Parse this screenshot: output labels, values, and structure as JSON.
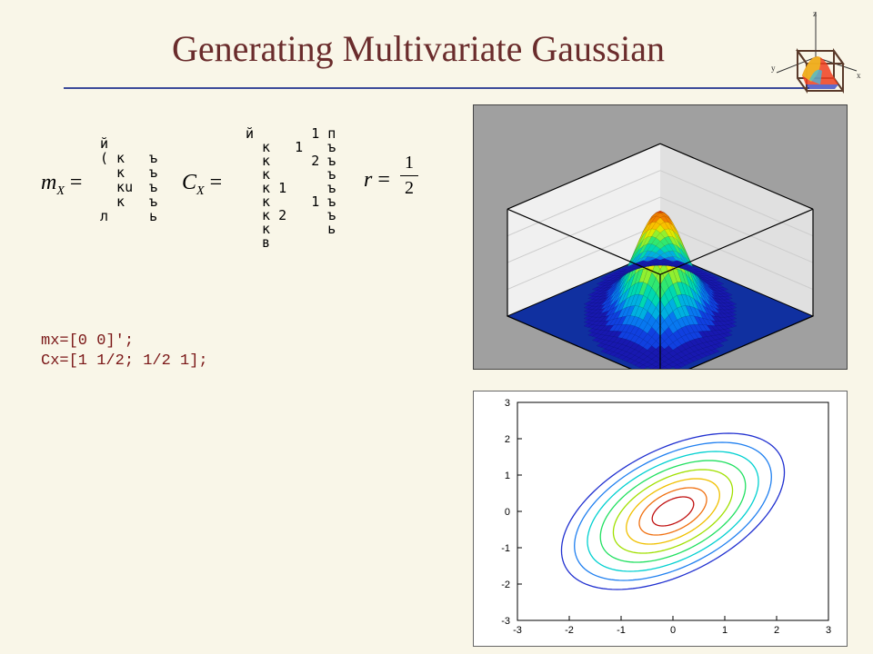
{
  "title": "Generating Multivariate Gaussian",
  "formula": {
    "mx_label": "m",
    "mx_sub": "X",
    "mx_matrix_glyphs": "й\n( к   ъ\n  к   ъ\n  кu  ъ\n  к   ъ\nл     ь",
    "cx_label": "C",
    "cx_sub": "X",
    "cx_matrix_glyphs": "й       1 п\n  к   1   ъ\n  к     2 ъ\n  к       ъ\n  к 1     ъ\n  к     1 ъ\n  к 2     ъ\n  к       ь\n  в",
    "r_label": "r",
    "r_num": "1",
    "r_den": "2"
  },
  "code_lines": [
    "mx=[0 0]';",
    "Cx=[1 1/2; 1/2 1];"
  ],
  "surface_plot": {
    "type": "surface",
    "title": "",
    "background_color": "#a0a0a0",
    "floor_color": "#1030a0",
    "box_color": "#e0e0e0",
    "grid_color": "#cccccc",
    "xlim": [
      -3,
      3
    ],
    "ylim": [
      -3,
      3
    ],
    "zlim": [
      0,
      0.19
    ],
    "mean": [
      0,
      0
    ],
    "cov": [
      [
        1,
        0.5
      ],
      [
        0.5,
        1
      ]
    ],
    "colormap": [
      "#1818b0",
      "#1040e0",
      "#0878f0",
      "#00b0e0",
      "#00d8b0",
      "#30e870",
      "#90f030",
      "#e0e800",
      "#f8c000",
      "#f08000",
      "#e04000",
      "#c01010"
    ]
  },
  "contour_plot": {
    "type": "contour",
    "background_color": "#ffffff",
    "grid_color": "#ffffff",
    "axis_color": "#000000",
    "label_fontsize": 11,
    "xlim": [
      -3,
      3
    ],
    "ylim": [
      -3,
      3
    ],
    "xtick_step": 1,
    "ytick_step": 1,
    "mean": [
      0,
      0
    ],
    "cov": [
      [
        1,
        0.5
      ],
      [
        0.5,
        1
      ]
    ],
    "eigvec_major": [
      0.7071,
      0.7071
    ],
    "eigvec_minor": [
      -0.7071,
      0.7071
    ],
    "sigma_major": 1.2247,
    "sigma_minor": 0.7071,
    "levels": [
      {
        "scale": 0.4,
        "color": "#c01010"
      },
      {
        "scale": 0.65,
        "color": "#f07010"
      },
      {
        "scale": 0.9,
        "color": "#f0c000"
      },
      {
        "scale": 1.15,
        "color": "#a0e000"
      },
      {
        "scale": 1.4,
        "color": "#20e060"
      },
      {
        "scale": 1.65,
        "color": "#00d0d0"
      },
      {
        "scale": 1.9,
        "color": "#2080f0"
      },
      {
        "scale": 2.15,
        "color": "#2030d0"
      }
    ]
  },
  "logo": {
    "cube_color": "#5a3a2a",
    "surface_colors": [
      "#2030c0",
      "#30c0f0",
      "#f0c020",
      "#f04020"
    ],
    "axis_labels": [
      "x",
      "y",
      "z"
    ]
  }
}
